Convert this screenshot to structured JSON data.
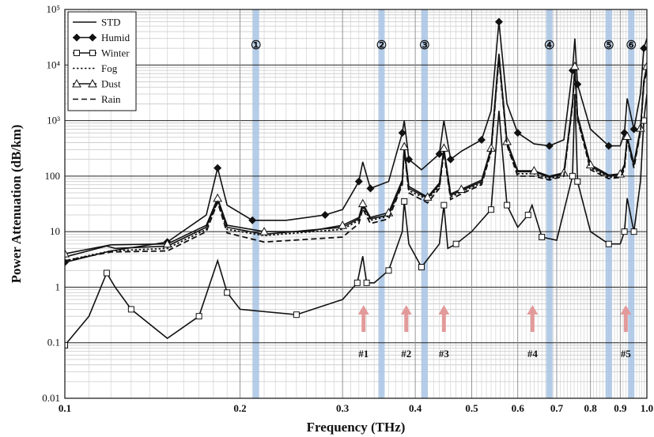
{
  "chart_data": {
    "type": "line",
    "title": "",
    "xlabel": "Frequency (THz)",
    "ylabel": "Power Attenuation (dB/km)",
    "x_scale": "log",
    "y_scale": "log",
    "xlim": [
      0.1,
      1.0
    ],
    "ylim": [
      0.01,
      100000
    ],
    "x_ticks": [
      0.1,
      0.2,
      0.3,
      0.4,
      0.5,
      0.6,
      0.7,
      0.8,
      0.9,
      1.0
    ],
    "x_tick_labels": [
      "0.1",
      "0.2",
      "0.3",
      "0.4",
      "0.5",
      "0.6",
      "0.7",
      "0.8",
      "0.9",
      "1.0"
    ],
    "y_ticks": [
      0.01,
      0.1,
      1,
      10,
      100,
      1000,
      10000,
      100000
    ],
    "y_tick_labels": [
      "0.01",
      "0.1",
      "1",
      "10",
      "100",
      "10³",
      "10⁴",
      "10⁵"
    ],
    "grid": true,
    "legend_position": "top-left",
    "series": [
      {
        "name": "STD",
        "style": "solid",
        "marker": "none",
        "x": [
          0.1,
          0.118,
          0.122,
          0.15,
          0.175,
          0.183,
          0.19,
          0.22,
          0.3,
          0.32,
          0.325,
          0.335,
          0.36,
          0.38,
          0.383,
          0.39,
          0.42,
          0.44,
          0.448,
          0.46,
          0.48,
          0.52,
          0.54,
          0.557,
          0.575,
          0.6,
          0.64,
          0.68,
          0.72,
          0.745,
          0.752,
          0.76,
          0.8,
          0.86,
          0.9,
          0.915,
          0.925,
          0.95,
          0.975,
          0.988,
          1.0
        ],
        "y": [
          3.5,
          5.5,
          5.0,
          5.5,
          12,
          38,
          12,
          9,
          12,
          17,
          30,
          17,
          20,
          80,
          320,
          60,
          40,
          70,
          300,
          45,
          55,
          80,
          300,
          15000,
          400,
          120,
          120,
          95,
          110,
          2000,
          9000,
          1200,
          150,
          100,
          105,
          150,
          500,
          160,
          700,
          5000,
          9000
        ]
      },
      {
        "name": "Humid",
        "style": "solid",
        "marker": "filled-diamond",
        "x": [
          0.1,
          0.12,
          0.15,
          0.175,
          0.183,
          0.19,
          0.21,
          0.24,
          0.28,
          0.3,
          0.32,
          0.325,
          0.335,
          0.36,
          0.38,
          0.383,
          0.39,
          0.41,
          0.44,
          0.448,
          0.46,
          0.48,
          0.52,
          0.54,
          0.557,
          0.575,
          0.6,
          0.64,
          0.68,
          0.72,
          0.745,
          0.752,
          0.76,
          0.8,
          0.86,
          0.9,
          0.915,
          0.925,
          0.95,
          0.975,
          0.988,
          1.0
        ],
        "y": [
          2.8,
          4.5,
          6.5,
          20,
          140,
          30,
          16,
          16,
          20,
          25,
          80,
          180,
          60,
          80,
          600,
          1000,
          200,
          130,
          250,
          1000,
          200,
          280,
          450,
          1500,
          60000,
          2000,
          600,
          380,
          350,
          450,
          8000,
          30000,
          4500,
          700,
          350,
          350,
          600,
          2500,
          700,
          3000,
          20000,
          30000
        ]
      },
      {
        "name": "Winter",
        "style": "solid",
        "marker": "open-square",
        "x": [
          0.1,
          0.11,
          0.118,
          0.122,
          0.13,
          0.15,
          0.17,
          0.183,
          0.19,
          0.2,
          0.25,
          0.3,
          0.318,
          0.325,
          0.33,
          0.34,
          0.36,
          0.38,
          0.383,
          0.39,
          0.41,
          0.44,
          0.448,
          0.455,
          0.47,
          0.5,
          0.54,
          0.557,
          0.575,
          0.6,
          0.625,
          0.635,
          0.66,
          0.7,
          0.745,
          0.752,
          0.76,
          0.8,
          0.86,
          0.9,
          0.915,
          0.925,
          0.95,
          0.975,
          0.988,
          1.0
        ],
        "y": [
          0.09,
          0.3,
          1.8,
          1.0,
          0.4,
          0.12,
          0.3,
          3.0,
          0.8,
          0.4,
          0.32,
          0.6,
          1.2,
          3.6,
          1.2,
          1.2,
          2.0,
          10,
          35,
          6,
          2.3,
          6,
          30,
          5,
          6,
          10,
          25,
          1500,
          30,
          12,
          20,
          30,
          8,
          7,
          100,
          3000,
          80,
          10,
          6,
          6,
          10,
          40,
          10,
          80,
          1000,
          3000
        ]
      },
      {
        "name": "Fog",
        "style": "dotted",
        "marker": "none",
        "x": [
          0.1,
          0.12,
          0.15,
          0.175,
          0.183,
          0.19,
          0.22,
          0.3,
          0.32,
          0.325,
          0.335,
          0.36,
          0.38,
          0.383,
          0.39,
          0.42,
          0.44,
          0.448,
          0.46,
          0.48,
          0.52,
          0.54,
          0.557,
          0.575,
          0.6,
          0.64,
          0.68,
          0.72,
          0.745,
          0.752,
          0.76,
          0.8,
          0.86,
          0.9,
          0.915,
          0.925,
          0.95,
          0.975,
          0.988,
          1.0
        ],
        "y": [
          3.0,
          4.5,
          5.0,
          11,
          35,
          11,
          8.5,
          11,
          16,
          28,
          16,
          19,
          75,
          300,
          55,
          38,
          65,
          280,
          42,
          52,
          75,
          280,
          14000,
          380,
          110,
          110,
          90,
          105,
          1900,
          8500,
          1100,
          140,
          95,
          100,
          140,
          470,
          150,
          650,
          4700,
          8500
        ]
      },
      {
        "name": "Dust",
        "style": "solid",
        "marker": "open-triangle",
        "x": [
          0.1,
          0.12,
          0.15,
          0.175,
          0.183,
          0.19,
          0.22,
          0.26,
          0.3,
          0.32,
          0.325,
          0.335,
          0.36,
          0.38,
          0.383,
          0.39,
          0.42,
          0.44,
          0.448,
          0.46,
          0.48,
          0.52,
          0.54,
          0.557,
          0.575,
          0.6,
          0.64,
          0.68,
          0.72,
          0.745,
          0.752,
          0.76,
          0.8,
          0.86,
          0.9,
          0.915,
          0.925,
          0.95,
          0.975,
          0.988,
          1.0
        ],
        "y": [
          4.0,
          5.8,
          6.0,
          13,
          40,
          13,
          10,
          10,
          13,
          18,
          32,
          18,
          22,
          85,
          340,
          65,
          42,
          75,
          320,
          48,
          58,
          85,
          320,
          16000,
          420,
          125,
          125,
          100,
          115,
          2100,
          9500,
          1250,
          160,
          105,
          110,
          160,
          520,
          170,
          730,
          5200,
          9500
        ]
      },
      {
        "name": "Rain",
        "style": "dashed",
        "marker": "none",
        "x": [
          0.1,
          0.12,
          0.15,
          0.175,
          0.183,
          0.19,
          0.22,
          0.3,
          0.32,
          0.325,
          0.335,
          0.36,
          0.38,
          0.383,
          0.39,
          0.42,
          0.44,
          0.448,
          0.46,
          0.48,
          0.52,
          0.54,
          0.557,
          0.575,
          0.6,
          0.64,
          0.68,
          0.72,
          0.745,
          0.752,
          0.76,
          0.8,
          0.86,
          0.9,
          0.915,
          0.925,
          0.95,
          0.975,
          0.988,
          1.0
        ],
        "y": [
          3.0,
          4.3,
          4.5,
          10,
          34,
          9.5,
          6.5,
          8,
          14,
          26,
          14,
          17,
          70,
          290,
          50,
          33,
          60,
          270,
          38,
          48,
          70,
          270,
          13000,
          360,
          100,
          100,
          85,
          100,
          1800,
          8200,
          1050,
          130,
          90,
          95,
          130,
          450,
          140,
          620,
          4500,
          8200
        ]
      }
    ],
    "band_markers": {
      "x": [
        0.213,
        0.35,
        0.415,
        0.68,
        0.86,
        0.94
      ],
      "labels": [
        "①",
        "②",
        "③",
        "④",
        "⑤",
        "⑥"
      ],
      "color": "#a8c4e4"
    },
    "arrow_markers": {
      "x": [
        0.326,
        0.386,
        0.448,
        0.636,
        0.92
      ],
      "labels": [
        "#1",
        "#2",
        "#3",
        "#4",
        "#5"
      ],
      "color": "#e39a9a"
    }
  }
}
